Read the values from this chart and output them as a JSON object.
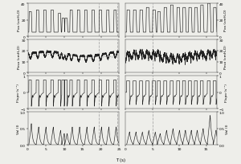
{
  "figsize": [
    3.0,
    2.05
  ],
  "dpi": 100,
  "bg": "#eeeeea",
  "line_color": "#222222",
  "vline_color": "#aaaaaa",
  "panels": [
    {
      "ylim": [
        0,
        40
      ],
      "yticks": [
        0,
        20,
        40
      ],
      "ylabel_l": "Pva (cmH₂O)",
      "ylabel_r": "Pva (cmH₂O)"
    },
    {
      "ylim": [
        0,
        30
      ],
      "yticks": [
        0,
        10,
        20,
        30
      ],
      "ylabel_l": "Peso (cmH₂O)",
      "ylabel_r": "Peso (cmH₂O)"
    },
    {
      "ylim": [
        -1.0,
        1.0
      ],
      "yticks": [
        -1.0,
        0.0,
        1.0
      ],
      "ylabel_l": "Flupo (s⁻¹)",
      "ylabel_r": "Flupo (s⁻¹)"
    },
    {
      "ylim": [
        0,
        1.0
      ],
      "yticks": [
        0,
        0.5,
        1.0
      ],
      "ylabel_l": "Vol (l)",
      "ylabel_r": "Vol (l)"
    }
  ],
  "left_xlim": [
    0,
    25
  ],
  "right_xlim": [
    0,
    17
  ],
  "xlabel": "T (s)",
  "left_vlines": [
    19.5,
    24.5
  ],
  "right_vlines": [
    5.0
  ]
}
